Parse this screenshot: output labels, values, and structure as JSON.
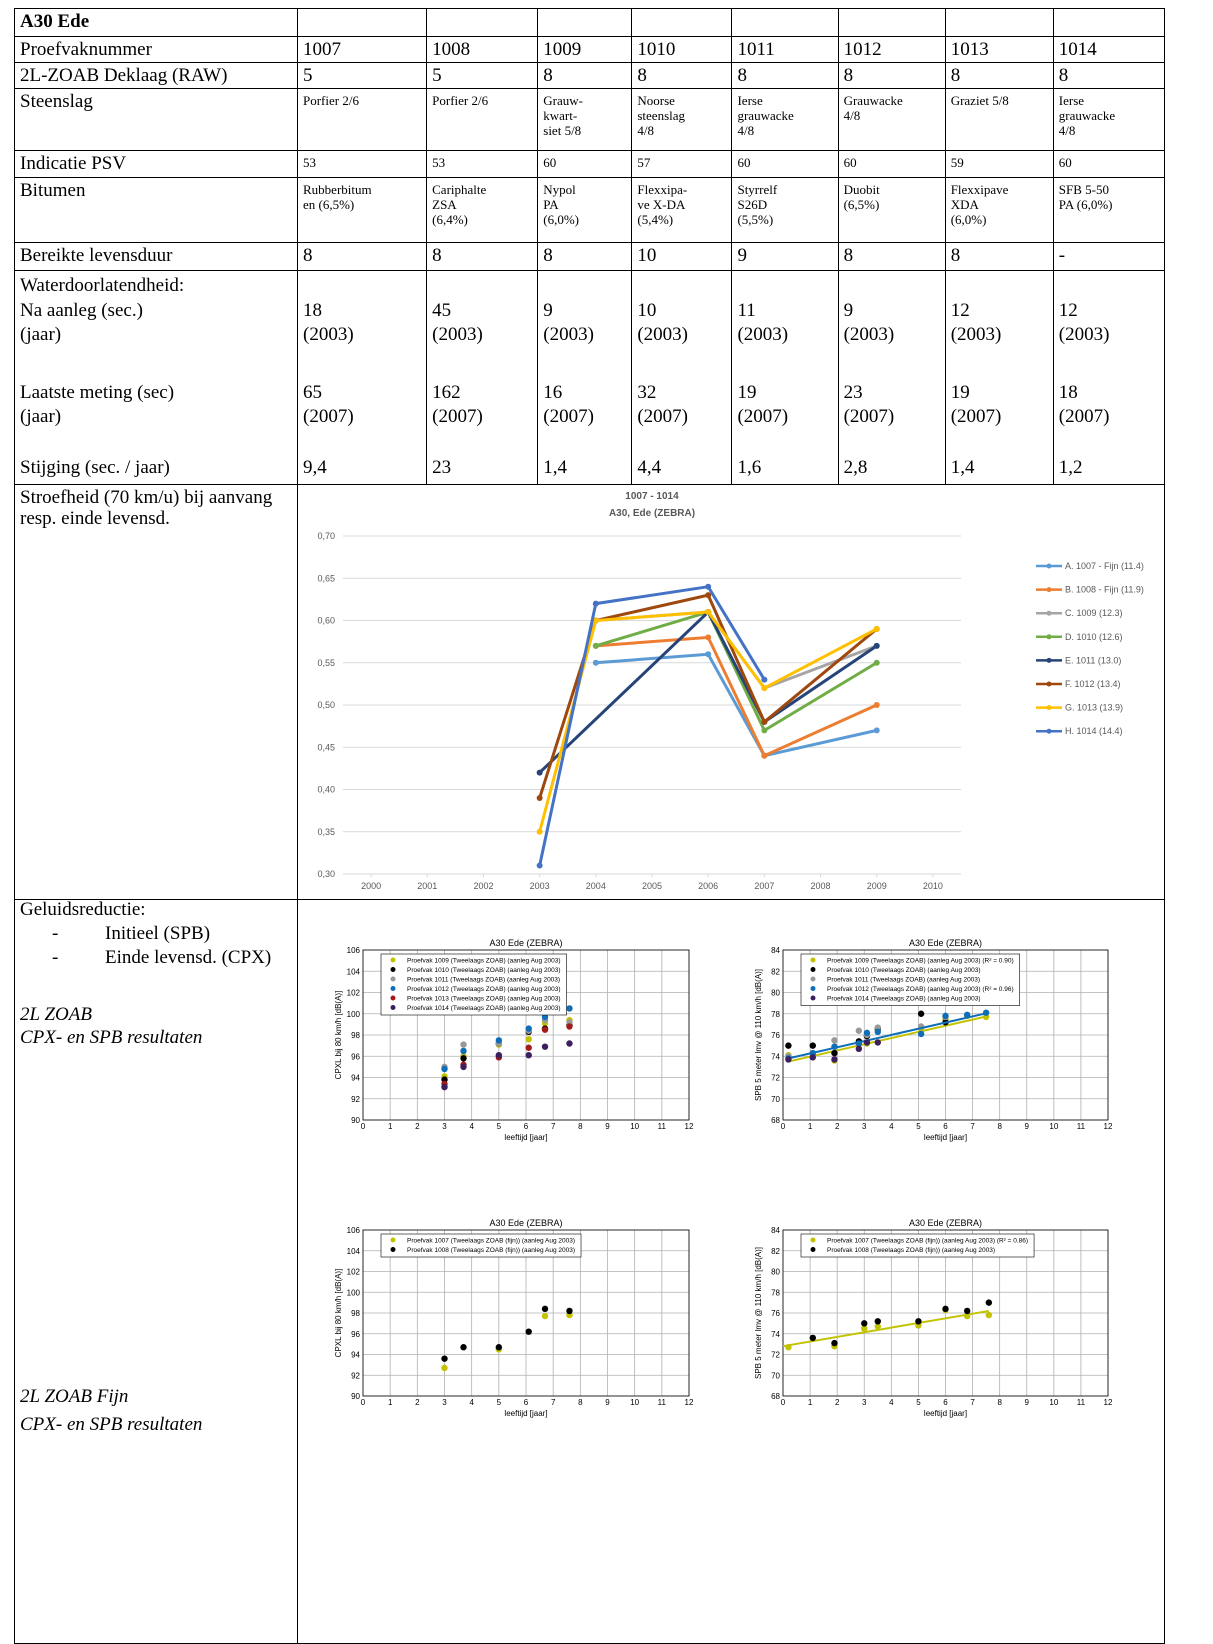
{
  "table": {
    "title": "A30 Ede",
    "rows": [
      {
        "label": "Proefvaknummer",
        "cells": [
          "1007",
          "1008",
          "1009",
          "1010",
          "1011",
          "1012",
          "1013",
          "1014"
        ]
      },
      {
        "label": "2L-ZOAB Deklaag (RAW)",
        "cells": [
          "5",
          "5",
          "8",
          "8",
          "8",
          "8",
          "8",
          "8"
        ]
      },
      {
        "label": "Steenslag",
        "cells": [
          "Porfier 2/6",
          "Porfier 2/6",
          "Grauw-\nkwart-\nsiet 5/8",
          "Noorse\nsteenslag\n4/8",
          "Ierse\ngrauwacke\n4/8",
          "Grauwacke\n4/8",
          "Graziet 5/8",
          "Ierse\ngrauwacke\n4/8"
        ]
      },
      {
        "label": "Indicatie PSV",
        "cells": [
          "53",
          "53",
          "60",
          "57",
          "60",
          "60",
          "59",
          "60"
        ]
      },
      {
        "label": "Bitumen",
        "cells": [
          "Rubberbitum\nen (6,5%)",
          "Cariphalte\nZSA\n(6,4%)",
          "Nypol\nPA\n(6,0%)",
          "Flexxipa-\nve X-DA\n(5,4%)",
          "Styrrelf\nS26D\n(5,5%)",
          "Duobit\n(6,5%)",
          "Flexxipave\nXDA\n(6,0%)",
          "SFB 5-50\nPA (6,0%)"
        ]
      },
      {
        "label": "Bereikte levensduur",
        "cells": [
          "8",
          "8",
          "8",
          "10",
          "9",
          "8",
          "8",
          "-"
        ]
      }
    ]
  },
  "water": {
    "label": "Waterdoorlatendheid:",
    "first": {
      "label": "Na aanleg (sec.)",
      "year_label": "(jaar)",
      "values": [
        "18",
        "45",
        "9",
        "10",
        "11",
        "9",
        "12",
        "12"
      ],
      "years": [
        "(2003)",
        "(2003)",
        "(2003)",
        "(2003)",
        "(2003)",
        "(2003)",
        "(2003)",
        "(2003)"
      ]
    },
    "last": {
      "label": "Laatste meting (sec)",
      "year_label": "(jaar)",
      "values": [
        "65",
        "162",
        "16",
        "32",
        "19",
        "23",
        "19",
        "18"
      ],
      "years": [
        "(2007)",
        "(2007)",
        "(2007)",
        "(2007)",
        "(2007)",
        "(2007)",
        "(2007)",
        "(2007)"
      ]
    },
    "rise": {
      "label": "Stijging (sec. / jaar)",
      "values": [
        "9,4",
        "23",
        "1,4",
        "4,4",
        "1,6",
        "2,8",
        "1,4",
        "1,2"
      ]
    }
  },
  "grip": {
    "label": "Stroefheid (70 km/u)  bij aanvang resp. einde levensd."
  },
  "noise": {
    "label": "Geluidsreductie:",
    "items": [
      "Initieel (SPB)",
      "Einde levensd. (CPX)"
    ],
    "groups": [
      {
        "title": "2L ZOAB",
        "subtitle": "CPX- en SPB resultaten"
      },
      {
        "title": "2L ZOAB Fijn",
        "subtitle": "CPX- en SPB resultaten"
      }
    ]
  },
  "chart_data": [
    {
      "type": "line",
      "title": "1007 - 1014",
      "subtitle": "A30, Ede (ZEBRA)",
      "xlim": [
        1999.5,
        2010.5
      ],
      "xticks": [
        2000,
        2001,
        2002,
        2003,
        2004,
        2005,
        2006,
        2007,
        2008,
        2009,
        2010
      ],
      "ylim": [
        0.3,
        0.7
      ],
      "yticks": [
        {
          "value": 0.3,
          "label": "0,30"
        },
        {
          "value": 0.35,
          "label": "0,35"
        },
        {
          "value": 0.4,
          "label": "0,40"
        },
        {
          "value": 0.45,
          "label": "0,45"
        },
        {
          "value": 0.5,
          "label": "0,50"
        },
        {
          "value": 0.55,
          "label": "0,55"
        },
        {
          "value": 0.6,
          "label": "0,60"
        },
        {
          "value": 0.65,
          "label": "0,65"
        },
        {
          "value": 0.7,
          "label": "0,70"
        }
      ],
      "grid": true,
      "series": [
        {
          "name": "A. 1007 - Fijn (11.4)",
          "color": "#5b9bd5",
          "x": [
            2004,
            2006,
            2007,
            2009
          ],
          "values": [
            0.55,
            0.56,
            0.44,
            0.47
          ]
        },
        {
          "name": "B. 1008 - Fijn (11.9)",
          "color": "#ed7d31",
          "x": [
            2004,
            2006,
            2007,
            2009
          ],
          "values": [
            0.57,
            0.58,
            0.44,
            0.5
          ]
        },
        {
          "name": "C. 1009 (12.3)",
          "color": "#a5a5a5",
          "x": [
            2004,
            2006,
            2007,
            2009
          ],
          "values": [
            0.6,
            0.61,
            0.52,
            0.57
          ]
        },
        {
          "name": "D. 1010 (12.6)",
          "color": "#70ad47",
          "x": [
            2004,
            2006,
            2007,
            2009
          ],
          "values": [
            0.57,
            0.61,
            0.47,
            0.55
          ]
        },
        {
          "name": "E. 1011 (13.0)",
          "color": "#264478",
          "x": [
            2003,
            2006,
            2007,
            2009
          ],
          "values": [
            0.42,
            0.61,
            0.48,
            0.57
          ]
        },
        {
          "name": "F. 1012 (13.4)",
          "color": "#9e480e",
          "x": [
            2003,
            2004,
            2006,
            2007,
            2009
          ],
          "values": [
            0.39,
            0.6,
            0.63,
            0.48,
            0.59
          ]
        },
        {
          "name": "G. 1013 (13.9)",
          "color": "#ffc000",
          "x": [
            2003,
            2004,
            2006,
            2007,
            2009
          ],
          "values": [
            0.35,
            0.6,
            0.61,
            0.52,
            0.59
          ]
        },
        {
          "name": "H. 1014 (14.4)",
          "color": "#4472c4",
          "x": [
            2003,
            2004,
            2006,
            2007
          ],
          "values": [
            0.31,
            0.62,
            0.64,
            0.53
          ]
        }
      ]
    },
    {
      "type": "scatter",
      "title": "A30 Ede (ZEBRA)",
      "xlabel": "leeftijd [jaar]",
      "ylabel": "CPXL bij 80 km/h [dB(A)]",
      "xlim": [
        0,
        12
      ],
      "xticks": [
        0,
        1,
        2,
        3,
        4,
        5,
        6,
        7,
        8,
        9,
        10,
        11,
        12
      ],
      "ylim": [
        90,
        106
      ],
      "yticks": [
        90,
        92,
        94,
        96,
        98,
        100,
        102,
        104,
        106
      ],
      "grid": true,
      "x": [
        3,
        3.7,
        5,
        6.1,
        6.7,
        7.6
      ],
      "series": [
        {
          "name": "Proefvak 1009 (Tweelaags ZOAB) (aanleg Aug 2003)",
          "color": "#c2c200",
          "values": [
            94.1,
            96,
            97.1,
            97.6,
            99.1,
            99.4
          ]
        },
        {
          "name": "Proefvak 1010 (Tweelaags ZOAB) (aanleg Aug 2003)",
          "color": "#000000",
          "values": [
            93.8,
            95.8,
            97.2,
            98.3,
            98.6,
            98.9
          ]
        },
        {
          "name": "Proefvak 1011 (Tweelaags ZOAB) (aanleg Aug 2003)",
          "color": "#999999",
          "values": [
            95,
            97.1,
            97.2,
            98.4,
            99.4,
            99.2
          ]
        },
        {
          "name": "Proefvak 1012 (Tweelaags ZOAB) (aanleg Aug 2003)",
          "color": "#0e6eb8",
          "values": [
            94.8,
            96.5,
            97.5,
            98.6,
            99.7,
            100.5
          ]
        },
        {
          "name": "Proefvak 1013 (Tweelaags ZOAB) (aanleg Aug 2003)",
          "color": "#a31a1a",
          "values": [
            93.4,
            95.2,
            95.9,
            96.8,
            98.5,
            98.8
          ]
        },
        {
          "name": "Proefvak 1014 (Tweelaags ZOAB) (aanleg Aug 2003)",
          "color": "#3b1f5e",
          "values": [
            93.1,
            95,
            96.1,
            96.1,
            96.9,
            97.2
          ]
        }
      ]
    },
    {
      "type": "scatter",
      "title": "A30 Ede (ZEBRA)",
      "xlabel": "leeftijd [jaar]",
      "ylabel": "SPB 5 meter lmv @ 110 km/h [dB(A)]",
      "xlim": [
        0,
        12
      ],
      "xticks": [
        0,
        1,
        2,
        3,
        4,
        5,
        6,
        7,
        8,
        9,
        10,
        11,
        12
      ],
      "ylim": [
        68,
        84
      ],
      "yticks": [
        68,
        70,
        72,
        74,
        76,
        78,
        80,
        82,
        84
      ],
      "grid": true,
      "x": [
        0.2,
        1.1,
        1.9,
        2.8,
        3.1,
        3.5,
        5.1,
        6,
        6.8,
        7.5
      ],
      "series": [
        {
          "name": "Proefvak 1009 (Tweelaags ZOAB) (aanleg Aug 2003) (R² = 0.90)",
          "color": "#c2c200",
          "values": [
            74.1,
            74,
            73.6,
            75.1,
            75.2,
            76.5,
            76.6,
            77.5,
            77.8,
            77.7
          ],
          "trend": {
            "x": [
              0.2,
              7.6
            ],
            "values": [
              73.5,
              77.8
            ]
          }
        },
        {
          "name": "Proefvak 1010 (Tweelaags ZOAB) (aanleg Aug 2003)",
          "color": "#000000",
          "values": [
            75,
            75,
            74.3,
            75.4,
            75.9,
            76.6,
            78,
            77.2,
            null,
            null
          ]
        },
        {
          "name": "Proefvak 1011 (Tweelaags ZOAB) (aanleg Aug 2003)",
          "color": "#999999",
          "values": [
            74,
            74.2,
            75.5,
            76.4,
            76,
            76.7,
            76.8,
            77.7,
            null,
            null
          ]
        },
        {
          "name": "Proefvak 1012 (Tweelaags ZOAB) (aanleg Aug 2003) (R² = 0.96)",
          "color": "#0e6eb8",
          "values": [
            73.8,
            74.3,
            74.9,
            75.2,
            76.2,
            76.3,
            76.1,
            77.8,
            77.9,
            78.1
          ],
          "trend": {
            "x": [
              0.2,
              7.6
            ],
            "values": [
              73.8,
              78.1
            ]
          }
        },
        {
          "name": "Proefvak 1014 (Tweelaags ZOAB) (aanleg Aug 2003)",
          "color": "#3b1f5e",
          "values": [
            73.7,
            73.9,
            73.7,
            74.7,
            75.3,
            75.3,
            null,
            null,
            null,
            null
          ]
        }
      ]
    },
    {
      "type": "scatter",
      "title": "A30 Ede (ZEBRA)",
      "xlabel": "leeftijd [jaar]",
      "ylabel": "CPXL bij 80 km/h [dB(A)]",
      "xlim": [
        0,
        12
      ],
      "xticks": [
        0,
        1,
        2,
        3,
        4,
        5,
        6,
        7,
        8,
        9,
        10,
        11,
        12
      ],
      "ylim": [
        90,
        106
      ],
      "yticks": [
        90,
        92,
        94,
        96,
        98,
        100,
        102,
        104,
        106
      ],
      "grid": true,
      "x": [
        3,
        3.7,
        5,
        6.1,
        6.7,
        7.6
      ],
      "series": [
        {
          "name": "Proefvak 1007 (Tweelaags ZOAB (fijn)) (aanleg Aug 2003)",
          "color": "#c2c200",
          "values": [
            92.7,
            null,
            94.5,
            null,
            97.7,
            97.8
          ]
        },
        {
          "name": "Proefvak 1008 (Tweelaags ZOAB (fijn)) (aanleg Aug 2003)",
          "color": "#000000",
          "values": [
            93.6,
            94.7,
            94.7,
            96.2,
            98.4,
            98.2
          ]
        }
      ]
    },
    {
      "type": "scatter",
      "title": "A30 Ede (ZEBRA)",
      "xlabel": "leeftijd [jaar]",
      "ylabel": "SPB 5 meter lmv @ 110 km/h [dB(A)]",
      "xlim": [
        0,
        12
      ],
      "xticks": [
        0,
        1,
        2,
        3,
        4,
        5,
        6,
        7,
        8,
        9,
        10,
        11,
        12
      ],
      "ylim": [
        68,
        84
      ],
      "yticks": [
        68,
        70,
        72,
        74,
        76,
        78,
        80,
        82,
        84
      ],
      "grid": true,
      "x": [
        0.2,
        1.1,
        1.9,
        3,
        3.5,
        5,
        6,
        6.8,
        7.6
      ],
      "series": [
        {
          "name": "Proefvak 1007 (Tweelaags ZOAB (fijn)) (aanleg Aug 2003) (R² = 0.86)",
          "color": "#c2c200",
          "values": [
            72.7,
            73.6,
            72.8,
            74.5,
            74.7,
            74.8,
            76.3,
            75.7,
            75.8
          ],
          "trend": {
            "x": [
              0,
              7.6
            ],
            "values": [
              72.8,
              76.2
            ]
          }
        },
        {
          "name": "Proefvak 1008 (Tweelaags ZOAB (fijn)) (aanleg Aug 2003)",
          "color": "#000000",
          "values": [
            null,
            73.6,
            73.1,
            75,
            75.2,
            75.2,
            76.4,
            76.2,
            77
          ]
        }
      ]
    }
  ]
}
